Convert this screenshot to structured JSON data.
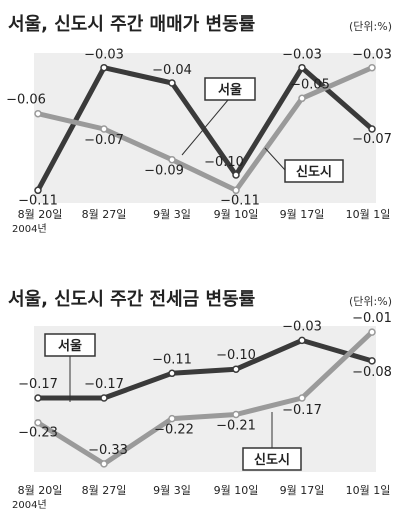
{
  "chart_data": [
    {
      "type": "line",
      "title": "서울, 신도시 주간 매매가 변동률",
      "unit": "(단위:%)",
      "categories": [
        "8월 20일",
        "8월 27일",
        "9월 3일",
        "9월 10일",
        "9월 17일",
        "10월 1일"
      ],
      "year_label": "2004년",
      "series": [
        {
          "name": "서울",
          "values": [
            -0.11,
            -0.03,
            -0.04,
            -0.1,
            -0.03,
            -0.07
          ],
          "labels": [
            "−0.11",
            "−0.03",
            "−0.04",
            "−0.10",
            "−0.03",
            "−0.07"
          ],
          "color": "#3a3a3a"
        },
        {
          "name": "신도시",
          "values": [
            -0.06,
            -0.07,
            -0.09,
            -0.11,
            -0.05,
            -0.03
          ],
          "labels": [
            "−0.06",
            "−0.07",
            "−0.09",
            "−0.11",
            "−0.05",
            "−0.03"
          ],
          "color": "#9a9a9a"
        }
      ],
      "ylim": [
        -0.115,
        -0.025
      ],
      "grid": false
    },
    {
      "type": "line",
      "title": "서울, 신도시 주간 전세금 변동률",
      "unit": "(단위:%)",
      "categories": [
        "8월 20일",
        "8월 27일",
        "9월 3일",
        "9월 10일",
        "9월 17일",
        "10월 1일"
      ],
      "year_label": "2004년",
      "series": [
        {
          "name": "서울",
          "values": [
            -0.17,
            -0.17,
            -0.11,
            -0.1,
            -0.03,
            -0.08
          ],
          "labels": [
            "−0.17",
            "−0.17",
            "−0.11",
            "−0.10",
            "−0.03",
            "−0.08"
          ],
          "color": "#3a3a3a"
        },
        {
          "name": "신도시",
          "values": [
            -0.23,
            -0.33,
            -0.22,
            -0.21,
            -0.17,
            -0.01
          ],
          "labels": [
            "−0.23",
            "−0.33",
            "−0.22",
            "−0.21",
            "−0.17",
            "−0.01"
          ],
          "color": "#9a9a9a"
        }
      ],
      "ylim": [
        -0.34,
        0.0
      ],
      "grid": false
    }
  ]
}
